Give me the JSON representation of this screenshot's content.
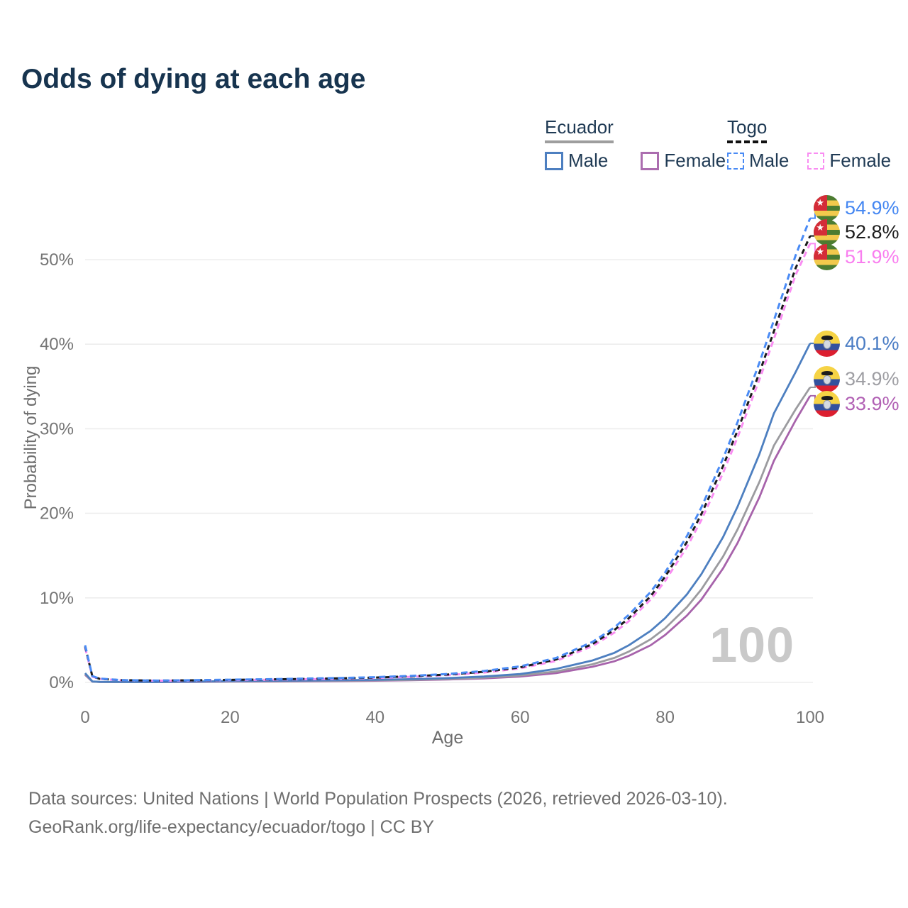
{
  "title": "Odds of dying at each age",
  "watermark_age": "100",
  "legend": {
    "position": "top-right",
    "groups": [
      {
        "country": "Ecuador",
        "line_style": "solid",
        "underline_color": "#9e9e9e",
        "items": [
          {
            "label": "Male",
            "color": "#4d7fc0"
          },
          {
            "label": "Female",
            "color": "#ab6daf"
          }
        ]
      },
      {
        "country": "Togo",
        "line_style": "dashed",
        "underline_color": "#111111",
        "items": [
          {
            "label": "Male",
            "color": "#4a8bf5"
          },
          {
            "label": "Female",
            "color": "#f98df2"
          }
        ]
      }
    ]
  },
  "chart_data": {
    "type": "line",
    "title": "Odds of dying at each age",
    "xlabel": "Age",
    "ylabel": "Probability of dying",
    "xlim": [
      0,
      100
    ],
    "ylim_percent": [
      0,
      56
    ],
    "x_ticks": [
      0,
      20,
      40,
      60,
      80,
      100
    ],
    "y_ticks_percent": [
      0,
      10,
      20,
      30,
      40,
      50
    ],
    "grid": "horizontal",
    "age_grid": [
      0,
      1,
      2,
      5,
      10,
      15,
      20,
      25,
      30,
      35,
      40,
      45,
      50,
      55,
      60,
      65,
      70,
      73,
      75,
      78,
      80,
      83,
      85,
      88,
      90,
      93,
      95,
      98,
      100
    ],
    "series": [
      {
        "id": "togo-male",
        "country": "Togo",
        "sex": "Male",
        "color": "#4a8bf5",
        "dash": "9 5.5",
        "flag": "togo",
        "end_label": "54.9%",
        "label_color": "#4587f2",
        "values_pct": [
          4.4,
          0.75,
          0.45,
          0.28,
          0.22,
          0.27,
          0.33,
          0.38,
          0.45,
          0.52,
          0.62,
          0.78,
          1.0,
          1.35,
          1.9,
          2.9,
          4.8,
          6.5,
          8.0,
          10.7,
          13.0,
          17.3,
          20.7,
          26.5,
          30.8,
          37.8,
          42.8,
          50.5,
          54.9
        ]
      },
      {
        "id": "togo-both",
        "country": "Togo",
        "sex": "Both",
        "color": "#1a1a1a",
        "dash": "7 5",
        "flag": "togo",
        "end_label": "52.8%",
        "label_color": "#1c1c1c",
        "values_pct": [
          4.25,
          0.72,
          0.43,
          0.27,
          0.21,
          0.25,
          0.3,
          0.35,
          0.41,
          0.48,
          0.57,
          0.72,
          0.93,
          1.26,
          1.78,
          2.72,
          4.55,
          6.2,
          7.6,
          10.2,
          12.5,
          16.6,
          19.9,
          25.6,
          29.8,
          36.6,
          41.5,
          49.0,
          52.8
        ]
      },
      {
        "id": "togo-female",
        "country": "Togo",
        "sex": "Female",
        "color": "#f98df2",
        "dash": "8 5.5",
        "flag": "togo",
        "end_label": "51.9%",
        "label_color": "#f97eef",
        "values_pct": [
          4.1,
          0.68,
          0.41,
          0.25,
          0.2,
          0.23,
          0.27,
          0.32,
          0.37,
          0.43,
          0.52,
          0.66,
          0.86,
          1.17,
          1.66,
          2.55,
          4.3,
          5.9,
          7.25,
          9.8,
          12.0,
          16.0,
          19.2,
          24.8,
          29.0,
          35.8,
          40.6,
          48.2,
          51.9
        ]
      },
      {
        "id": "ecuador-male",
        "country": "Ecuador",
        "sex": "Male",
        "color": "#4d7fc0",
        "dash": null,
        "flag": "ecuador",
        "end_label": "40.1%",
        "label_color": "#4a7cc4",
        "values_pct": [
          1.1,
          0.12,
          0.07,
          0.05,
          0.06,
          0.1,
          0.16,
          0.2,
          0.23,
          0.26,
          0.31,
          0.39,
          0.51,
          0.7,
          1.0,
          1.6,
          2.6,
          3.5,
          4.4,
          6.1,
          7.6,
          10.4,
          12.8,
          17.2,
          20.8,
          27.0,
          31.8,
          36.7,
          40.1
        ]
      },
      {
        "id": "ecuador-both",
        "country": "Ecuador",
        "sex": "Both",
        "color": "#9b9b9f",
        "dash": null,
        "flag": "ecuador",
        "end_label": "34.9%",
        "label_color": "#9e9ea3",
        "values_pct": [
          1.0,
          0.1,
          0.06,
          0.045,
          0.05,
          0.08,
          0.12,
          0.15,
          0.18,
          0.21,
          0.25,
          0.31,
          0.41,
          0.57,
          0.82,
          1.3,
          2.15,
          2.9,
          3.65,
          5.1,
          6.4,
          8.9,
          11.0,
          14.9,
          18.1,
          23.7,
          28.0,
          32.3,
          34.9
        ]
      },
      {
        "id": "ecuador-female",
        "country": "Ecuador",
        "sex": "Female",
        "color": "#a763ab",
        "dash": null,
        "flag": "ecuador",
        "end_label": "33.9%",
        "label_color": "#b160b4",
        "values_pct": [
          0.9,
          0.09,
          0.055,
          0.04,
          0.045,
          0.06,
          0.09,
          0.11,
          0.13,
          0.16,
          0.2,
          0.26,
          0.34,
          0.48,
          0.7,
          1.1,
          1.85,
          2.5,
          3.15,
          4.4,
          5.6,
          7.9,
          9.8,
          13.5,
          16.5,
          21.9,
          26.2,
          31.0,
          33.9
        ]
      }
    ]
  },
  "footer": {
    "line1": "Data sources: United Nations | World Population Prospects (2026, retrieved 2026-03-10).",
    "line2": "GeoRank.org/life-expectancy/ecuador/togo | CC BY"
  }
}
